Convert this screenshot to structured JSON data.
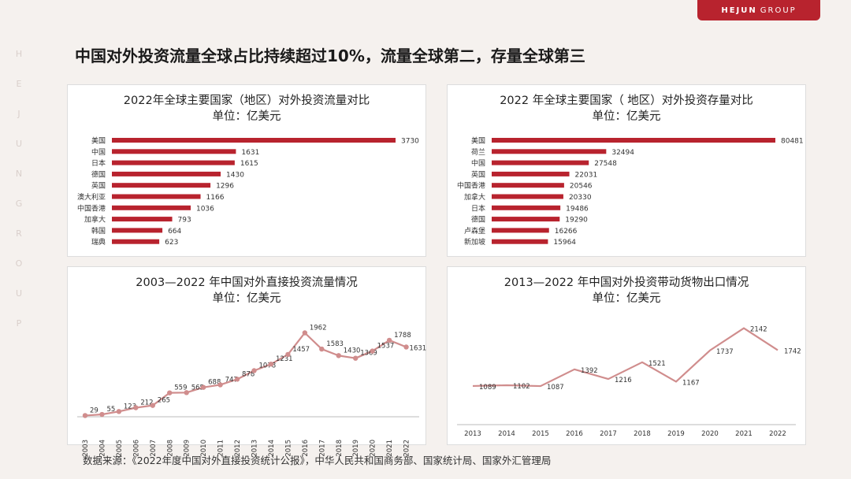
{
  "brand": {
    "name": "HEJUN",
    "suffix": "GROUP"
  },
  "side_letters": [
    "H",
    "E",
    "J",
    "U",
    "N",
    "G",
    "R",
    "O",
    "U",
    "P"
  ],
  "headline": "中国对外投资流量全球占比持续超过10%，流量全球第二，存量全球第三",
  "source": "数据来源：《2022年度中国对外直接投资统计公报》，中华人民共和国商务部、国家统计局、国家外汇管理局",
  "colors": {
    "bar": "#b8232e",
    "line": "#d08d8d",
    "accent": "#b8232e",
    "background": "#f5f1ee"
  },
  "chart_data": [
    {
      "type": "bar",
      "title": "2022年全球主要国家（地区）对外投资流量对比",
      "subtitle": "单位：亿美元",
      "categories": [
        "美国",
        "中国",
        "日本",
        "德国",
        "英国",
        "澳大利亚",
        "中国香港",
        "加拿大",
        "韩国",
        "瑞典"
      ],
      "values": [
        3730,
        1631,
        1615,
        1430,
        1296,
        1166,
        1036,
        793,
        664,
        623
      ],
      "orientation": "horizontal",
      "xlim": [
        0,
        3730
      ]
    },
    {
      "type": "bar",
      "title": "2022 年全球主要国家（ 地区）对外投资存量对比",
      "subtitle": "单位：亿美元",
      "categories": [
        "美国",
        "荷兰",
        "中国",
        "英国",
        "中国香港",
        "加拿大",
        "日本",
        "德国",
        "卢森堡",
        "新加坡"
      ],
      "values": [
        80481,
        32494,
        27548,
        22031,
        20546,
        20330,
        19486,
        19290,
        16266,
        15964
      ],
      "orientation": "horizontal",
      "xlim": [
        0,
        80481
      ]
    },
    {
      "type": "line",
      "title": "2003—2022 年中国对外直接投资流量情况",
      "subtitle": "单位：亿美元",
      "x": [
        "2003",
        "2004",
        "2005",
        "2006",
        "2007",
        "2008",
        "2009",
        "2010",
        "2011",
        "2012",
        "2013",
        "2014",
        "2015",
        "2016",
        "2017",
        "2018",
        "2019",
        "2020",
        "2021",
        "2022"
      ],
      "values": [
        29,
        55,
        123,
        212,
        265,
        559,
        565,
        688,
        747,
        878,
        1078,
        1231,
        1457,
        1962,
        1583,
        1430,
        1369,
        1537,
        1788,
        1631
      ],
      "ylim": [
        0,
        2100
      ],
      "markers": true
    },
    {
      "type": "line",
      "title": "2013—2022 年中国对外投资带动货物出口情况",
      "subtitle": "单位：亿美元",
      "x": [
        "2013",
        "2014",
        "2015",
        "2016",
        "2017",
        "2018",
        "2019",
        "2020",
        "2021",
        "2022"
      ],
      "values": [
        1089,
        1102,
        1087,
        1392,
        1216,
        1521,
        1167,
        1737,
        2142,
        1742
      ],
      "ylim": [
        600,
        2250
      ],
      "markers": false
    }
  ]
}
